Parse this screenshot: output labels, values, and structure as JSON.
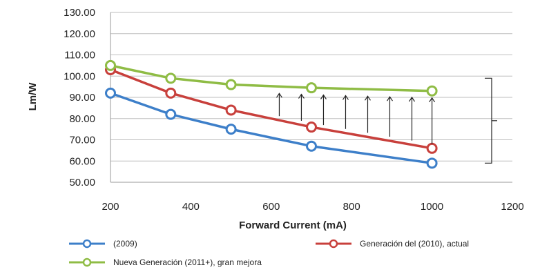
{
  "chart_data": {
    "type": "line",
    "xlabel": "Forward Current (mA)",
    "ylabel": "Lm/W",
    "xlim": [
      200,
      1200
    ],
    "ylim": [
      50,
      130
    ],
    "x_ticks": [
      200,
      400,
      600,
      800,
      1000,
      1200
    ],
    "y_ticks": [
      "130.00",
      "120.00",
      "110.00",
      "100.00",
      "90.00",
      "80.00",
      "70.00",
      "60.00",
      "50.00"
    ],
    "grid": "horizontal",
    "legend_position": "bottom",
    "series": [
      {
        "name": "(2009)",
        "color": "#3d7fc9",
        "x": [
          200,
          350,
          500,
          700,
          1000
        ],
        "y": [
          92,
          82,
          75,
          67,
          59
        ]
      },
      {
        "name": "Generación del  (2010), actual",
        "color": "#c8403c",
        "x": [
          200,
          350,
          500,
          700,
          1000
        ],
        "y": [
          103,
          92,
          84,
          76,
          66
        ]
      },
      {
        "name": "Nueva Generación  (2011+), gran mejora",
        "color": "#8fbc45",
        "x": [
          200,
          350,
          500,
          700,
          1000
        ],
        "y": [
          105,
          99,
          96,
          94.5,
          93
        ]
      }
    ],
    "annotation": {
      "arrows_x": [
        620,
        675,
        730,
        785,
        840,
        895,
        950,
        1000
      ],
      "bracket_range": [
        59,
        99
      ]
    }
  }
}
